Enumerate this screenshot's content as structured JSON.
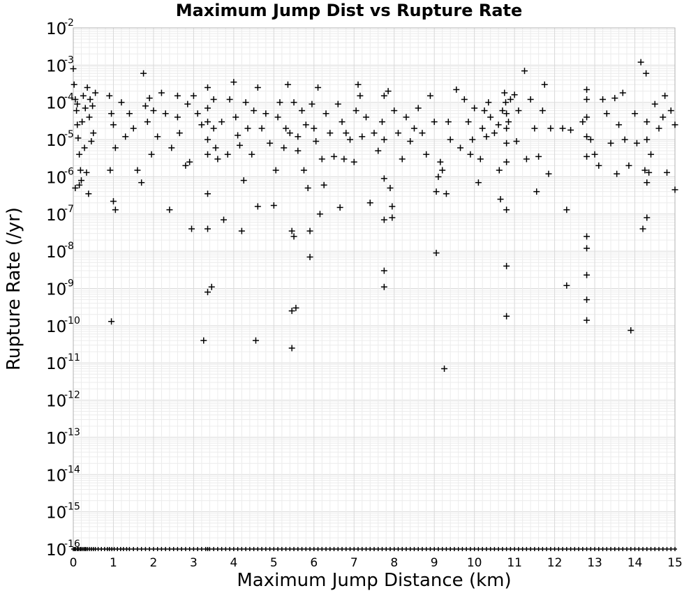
{
  "chart_data": {
    "type": "scatter",
    "title": "Maximum Jump Dist vs Rupture Rate",
    "xlabel": "Maximum Jump Distance (km)",
    "ylabel": "Rupture Rate (/yr)",
    "xlim": [
      0,
      15
    ],
    "ylim": [
      1e-16,
      0.01
    ],
    "yscale": "log",
    "grid": true,
    "marker": "+",
    "x_ticks": [
      "0",
      "1",
      "2",
      "3",
      "4",
      "5",
      "6",
      "7",
      "8",
      "9",
      "10",
      "11",
      "12",
      "13",
      "14",
      "15"
    ],
    "y_ticks": [
      {
        "base": "10",
        "exp": "-2"
      },
      {
        "base": "10",
        "exp": "-3"
      },
      {
        "base": "10",
        "exp": "-4"
      },
      {
        "base": "10",
        "exp": "-5"
      },
      {
        "base": "10",
        "exp": "-6"
      },
      {
        "base": "10",
        "exp": "-7"
      },
      {
        "base": "10",
        "exp": "-8"
      },
      {
        "base": "10",
        "exp": "-9"
      },
      {
        "base": "10",
        "exp": "-10"
      },
      {
        "base": "10",
        "exp": "-11"
      },
      {
        "base": "10",
        "exp": "-12"
      },
      {
        "base": "10",
        "exp": "-13"
      },
      {
        "base": "10",
        "exp": "-14"
      },
      {
        "base": "10",
        "exp": "-15"
      },
      {
        "base": "10",
        "exp": "-16"
      }
    ],
    "series": [
      {
        "points": [
          [
            0.0,
            0.0008
          ],
          [
            0.02,
            0.0003
          ],
          [
            0.05,
            0.00012
          ],
          [
            0.08,
            6e-05
          ],
          [
            0.1,
            2.5e-05
          ],
          [
            0.12,
            1.1e-05
          ],
          [
            0.15,
            4e-06
          ],
          [
            0.18,
            1.5e-06
          ],
          [
            0.2,
            8e-07
          ],
          [
            0.05,
            5e-07
          ],
          [
            0.1,
            9e-05
          ],
          [
            0.25,
            0.00015
          ],
          [
            0.3,
            7e-05
          ],
          [
            0.35,
            0.00025
          ],
          [
            0.4,
            4e-05
          ],
          [
            0.45,
            9e-06
          ],
          [
            0.5,
            1.5e-05
          ],
          [
            0.22,
            3e-05
          ],
          [
            0.28,
            6e-06
          ],
          [
            0.38,
            3.5e-07
          ],
          [
            0.42,
            0.00012
          ],
          [
            0.48,
            8e-05
          ],
          [
            0.55,
            0.00018
          ],
          [
            0.33,
            1.3e-06
          ],
          [
            0.15,
            6e-07
          ],
          [
            0.9,
            0.00015
          ],
          [
            0.95,
            5e-05
          ],
          [
            1.0,
            2.5e-05
          ],
          [
            0.92,
            1.5e-06
          ],
          [
            1.0,
            2.2e-07
          ],
          [
            1.05,
            1.3e-07
          ],
          [
            0.95,
            1.3e-10
          ],
          [
            1.05,
            6e-06
          ],
          [
            1.2,
            0.0001
          ],
          [
            1.3,
            1.2e-05
          ],
          [
            1.4,
            5e-05
          ],
          [
            1.5,
            2e-05
          ],
          [
            1.6,
            1.5e-06
          ],
          [
            1.7,
            7e-07
          ],
          [
            1.75,
            0.0006
          ],
          [
            1.8,
            8e-05
          ],
          [
            1.85,
            3e-05
          ],
          [
            1.9,
            0.00013
          ],
          [
            1.95,
            4e-06
          ],
          [
            2.0,
            6e-05
          ],
          [
            2.1,
            1.2e-05
          ],
          [
            2.2,
            0.00018
          ],
          [
            2.3,
            5e-05
          ],
          [
            2.4,
            1.3e-07
          ],
          [
            2.45,
            6e-06
          ],
          [
            2.6,
            0.00015
          ],
          [
            2.6,
            4e-05
          ],
          [
            2.65,
            1.5e-05
          ],
          [
            2.8,
            2e-06
          ],
          [
            2.85,
            9e-05
          ],
          [
            2.9,
            2.5e-06
          ],
          [
            2.95,
            4e-08
          ],
          [
            3.0,
            0.00015
          ],
          [
            3.1,
            5e-05
          ],
          [
            3.2,
            2.5e-05
          ],
          [
            3.25,
            4e-11
          ],
          [
            3.35,
            0.00025
          ],
          [
            3.35,
            7e-05
          ],
          [
            3.35,
            3e-05
          ],
          [
            3.35,
            1e-05
          ],
          [
            3.35,
            4e-06
          ],
          [
            3.35,
            3.5e-07
          ],
          [
            3.35,
            4e-08
          ],
          [
            3.35,
            8e-10
          ],
          [
            3.45,
            1.1e-09
          ],
          [
            3.5,
            0.00012
          ],
          [
            3.5,
            2e-05
          ],
          [
            3.55,
            6e-06
          ],
          [
            3.6,
            3e-06
          ],
          [
            3.7,
            3e-05
          ],
          [
            3.75,
            7e-08
          ],
          [
            3.85,
            4e-06
          ],
          [
            3.9,
            0.00012
          ],
          [
            4.0,
            0.00035
          ],
          [
            4.05,
            4e-05
          ],
          [
            4.1,
            1.3e-05
          ],
          [
            4.15,
            7e-06
          ],
          [
            4.2,
            3.5e-08
          ],
          [
            4.25,
            8e-07
          ],
          [
            4.3,
            0.0001
          ],
          [
            4.35,
            2e-05
          ],
          [
            4.45,
            4e-06
          ],
          [
            4.5,
            6e-05
          ],
          [
            4.55,
            4e-11
          ],
          [
            4.6,
            1.6e-07
          ],
          [
            4.6,
            0.00025
          ],
          [
            4.7,
            2e-05
          ],
          [
            4.8,
            5e-05
          ],
          [
            4.9,
            8e-06
          ],
          [
            5.0,
            1.7e-07
          ],
          [
            5.05,
            1.5e-06
          ],
          [
            5.1,
            4e-05
          ],
          [
            5.15,
            0.0001
          ],
          [
            5.25,
            6e-06
          ],
          [
            5.3,
            2e-05
          ],
          [
            5.35,
            0.0003
          ],
          [
            5.4,
            1.5e-05
          ],
          [
            5.45,
            3.5e-08
          ],
          [
            5.5,
            2.5e-08
          ],
          [
            5.45,
            2.5e-10
          ],
          [
            5.55,
            3e-10
          ],
          [
            5.45,
            2.5e-11
          ],
          [
            5.5,
            0.0001
          ],
          [
            5.6,
            5e-06
          ],
          [
            5.6,
            1.2e-05
          ],
          [
            5.7,
            6e-05
          ],
          [
            5.75,
            1.5e-06
          ],
          [
            5.8,
            2.5e-05
          ],
          [
            5.85,
            5e-07
          ],
          [
            5.9,
            3.5e-08
          ],
          [
            5.9,
            7e-09
          ],
          [
            5.95,
            9e-05
          ],
          [
            6.0,
            2e-05
          ],
          [
            6.05,
            9e-06
          ],
          [
            6.1,
            0.00025
          ],
          [
            6.15,
            1e-07
          ],
          [
            6.2,
            3e-06
          ],
          [
            6.25,
            6e-07
          ],
          [
            6.3,
            5e-05
          ],
          [
            6.4,
            1.5e-05
          ],
          [
            6.5,
            3.5e-06
          ],
          [
            6.6,
            9e-05
          ],
          [
            6.65,
            1.5e-07
          ],
          [
            6.7,
            3e-05
          ],
          [
            6.75,
            3e-06
          ],
          [
            6.8,
            1.5e-05
          ],
          [
            6.9,
            1e-05
          ],
          [
            7.0,
            2.5e-06
          ],
          [
            7.05,
            6e-05
          ],
          [
            7.1,
            0.0003
          ],
          [
            7.15,
            0.00015
          ],
          [
            7.2,
            1.2e-05
          ],
          [
            7.3,
            4e-05
          ],
          [
            7.4,
            2e-07
          ],
          [
            7.5,
            1.5e-05
          ],
          [
            7.6,
            5e-06
          ],
          [
            7.7,
            3e-05
          ],
          [
            7.75,
            0.00015
          ],
          [
            7.75,
            1e-05
          ],
          [
            7.75,
            9e-07
          ],
          [
            7.75,
            7e-08
          ],
          [
            7.75,
            3e-09
          ],
          [
            7.75,
            1.1e-09
          ],
          [
            7.85,
            0.0002
          ],
          [
            7.9,
            5e-07
          ],
          [
            7.95,
            1.6e-07
          ],
          [
            7.95,
            8e-08
          ],
          [
            8.0,
            6e-05
          ],
          [
            8.1,
            1.5e-05
          ],
          [
            8.2,
            3e-06
          ],
          [
            8.3,
            4e-05
          ],
          [
            8.4,
            9e-06
          ],
          [
            8.5,
            2e-05
          ],
          [
            8.6,
            7e-05
          ],
          [
            8.7,
            1.5e-05
          ],
          [
            8.8,
            4e-06
          ],
          [
            8.9,
            0.00015
          ],
          [
            9.0,
            3e-05
          ],
          [
            9.05,
            9e-09
          ],
          [
            9.05,
            4e-07
          ],
          [
            9.1,
            1e-06
          ],
          [
            9.15,
            2.5e-06
          ],
          [
            9.2,
            1.5e-06
          ],
          [
            9.25,
            7e-12
          ],
          [
            9.3,
            3.5e-07
          ],
          [
            9.35,
            3e-05
          ],
          [
            9.4,
            1e-05
          ],
          [
            9.55,
            0.00022
          ],
          [
            9.65,
            6e-06
          ],
          [
            9.75,
            0.00012
          ],
          [
            9.85,
            3e-05
          ],
          [
            9.9,
            4e-06
          ],
          [
            9.95,
            1e-05
          ],
          [
            10.0,
            7e-05
          ],
          [
            10.1,
            7e-07
          ],
          [
            10.15,
            3e-06
          ],
          [
            10.2,
            2e-05
          ],
          [
            10.25,
            6e-05
          ],
          [
            10.3,
            1.2e-05
          ],
          [
            10.35,
            0.0001
          ],
          [
            10.4,
            4e-05
          ],
          [
            10.5,
            1.5e-05
          ],
          [
            10.6,
            2.5e-05
          ],
          [
            10.62,
            1.5e-06
          ],
          [
            10.65,
            2.5e-07
          ],
          [
            10.7,
            6e-05
          ],
          [
            10.75,
            0.00018
          ],
          [
            10.78,
            0.0001
          ],
          [
            10.8,
            5e-05
          ],
          [
            10.8,
            2e-05
          ],
          [
            10.8,
            8e-06
          ],
          [
            10.8,
            2.5e-06
          ],
          [
            10.8,
            1.3e-07
          ],
          [
            10.8,
            4e-09
          ],
          [
            10.8,
            1.8e-10
          ],
          [
            10.85,
            3e-05
          ],
          [
            10.9,
            0.00012
          ],
          [
            11.0,
            0.00016
          ],
          [
            11.05,
            9e-06
          ],
          [
            11.1,
            6e-05
          ],
          [
            11.25,
            0.0007
          ],
          [
            11.3,
            3e-06
          ],
          [
            11.4,
            0.00012
          ],
          [
            11.5,
            2e-05
          ],
          [
            11.55,
            4e-07
          ],
          [
            11.6,
            3.5e-06
          ],
          [
            11.7,
            6e-05
          ],
          [
            11.75,
            0.0003
          ],
          [
            11.85,
            1.2e-06
          ],
          [
            11.9,
            2e-05
          ],
          [
            12.2,
            2e-05
          ],
          [
            12.3,
            1.3e-07
          ],
          [
            12.3,
            1.2e-09
          ],
          [
            12.4,
            1.8e-05
          ],
          [
            12.7,
            3e-05
          ],
          [
            12.8,
            0.00012
          ],
          [
            12.8,
            0.00022
          ],
          [
            12.8,
            4e-05
          ],
          [
            12.8,
            1.2e-05
          ],
          [
            12.8,
            3.5e-06
          ],
          [
            12.8,
            2.5e-08
          ],
          [
            12.8,
            1.2e-08
          ],
          [
            12.8,
            2.3e-09
          ],
          [
            12.8,
            5e-10
          ],
          [
            12.8,
            1.4e-10
          ],
          [
            12.9,
            1e-05
          ],
          [
            13.0,
            4e-06
          ],
          [
            13.1,
            2e-06
          ],
          [
            13.2,
            0.00012
          ],
          [
            13.3,
            5e-05
          ],
          [
            13.4,
            8e-06
          ],
          [
            13.5,
            0.00013
          ],
          [
            13.55,
            1.2e-06
          ],
          [
            13.6,
            2.5e-05
          ],
          [
            13.7,
            0.00018
          ],
          [
            13.75,
            1e-05
          ],
          [
            13.85,
            2e-06
          ],
          [
            13.9,
            7.5e-11
          ],
          [
            14.0,
            5e-05
          ],
          [
            14.05,
            8e-06
          ],
          [
            14.15,
            0.0012
          ],
          [
            14.2,
            4e-08
          ],
          [
            14.25,
            1.5e-06
          ],
          [
            14.28,
            0.0006
          ],
          [
            14.3,
            3e-05
          ],
          [
            14.3,
            1e-05
          ],
          [
            14.3,
            7e-07
          ],
          [
            14.3,
            8e-08
          ],
          [
            14.35,
            1.3e-06
          ],
          [
            14.4,
            4e-06
          ],
          [
            14.5,
            9e-05
          ],
          [
            14.6,
            2e-05
          ],
          [
            14.7,
            4e-05
          ],
          [
            14.75,
            0.00015
          ],
          [
            14.8,
            1.3e-06
          ],
          [
            14.9,
            6e-05
          ],
          [
            15.0,
            2.5e-05
          ],
          [
            15.0,
            4.5e-07
          ]
        ]
      }
    ],
    "floor_value": 1e-16,
    "floor_points_x": [
      0.0,
      0.03,
      0.06,
      0.1,
      0.13,
      0.17,
      0.2,
      0.24,
      0.28,
      0.31,
      0.35,
      0.4,
      0.45,
      0.5,
      0.55,
      0.62,
      0.7,
      0.78,
      0.85,
      0.9,
      0.96,
      1.02,
      1.1,
      1.18,
      1.25,
      1.33,
      1.4,
      1.5,
      1.6,
      1.7,
      1.8,
      1.9,
      2.0,
      2.1,
      2.2,
      2.3,
      2.4,
      2.5,
      2.6,
      2.7,
      2.8,
      2.9,
      3.0,
      3.1,
      3.2,
      3.3,
      3.35,
      3.4,
      3.5,
      3.6,
      3.7,
      3.8,
      3.9,
      4.0,
      4.1,
      4.2,
      4.3,
      4.4,
      4.5,
      4.6,
      4.7,
      4.8,
      4.9,
      5.0,
      5.1,
      5.2,
      5.3,
      5.4,
      5.5,
      5.6,
      5.7,
      5.8,
      5.9,
      6.0,
      6.1,
      6.2,
      6.3,
      6.4,
      6.5,
      6.6,
      6.7,
      6.8,
      6.9,
      7.0,
      7.1,
      7.2,
      7.3,
      7.4,
      7.5,
      7.6,
      7.7,
      7.8,
      7.9,
      8.0,
      8.1,
      8.2,
      8.3,
      8.4,
      8.5,
      8.6,
      8.7,
      8.8,
      8.9,
      9.0,
      9.1,
      9.2,
      9.3,
      9.4,
      9.5,
      9.6,
      9.7,
      9.8,
      9.9,
      10.0,
      10.1,
      10.2,
      10.3,
      10.4,
      10.5,
      10.6,
      10.7,
      10.8,
      10.9,
      11.0,
      11.1,
      11.2,
      11.3,
      11.4,
      11.5,
      11.6,
      11.7,
      11.8,
      11.9,
      12.0,
      12.1,
      12.2,
      12.3,
      12.4,
      12.5,
      12.6,
      12.7,
      12.8,
      12.9,
      13.0,
      13.1,
      13.2,
      13.3,
      13.4,
      13.5,
      13.6,
      13.7,
      13.8,
      13.9,
      14.0,
      14.1,
      14.2,
      14.3,
      14.4,
      14.5,
      14.6,
      14.7,
      14.8,
      14.9,
      15.0
    ]
  }
}
